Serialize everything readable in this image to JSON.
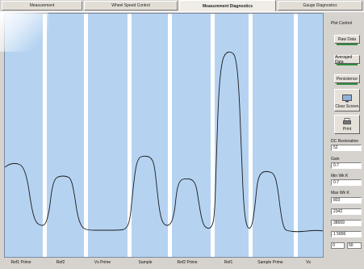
{
  "tabs": [
    {
      "label": "Measurement",
      "active": false
    },
    {
      "label": "Wheel Speed Control",
      "active": false
    },
    {
      "label": "Measurement Diagnostics",
      "active": true
    },
    {
      "label": "Gauge Diagnostics",
      "active": false
    }
  ],
  "plot": {
    "background": "#b5d3f1",
    "trace_color": "#1a1a1a",
    "stripe_color": "#ffffff",
    "x_labels": [
      "Ref1 Prime",
      "Ref2",
      "Vs Prime",
      "Sample",
      "Ref2 Prime",
      "Ref1",
      "Sample Prime",
      "Vs"
    ]
  },
  "panel": {
    "title": "Plot Control",
    "raw_data": "Raw Data",
    "averaged_data": "Averaged Data",
    "persistence": "Persistence",
    "clear_screen": "Clear Screen",
    "print": "Print",
    "dc_restoration_label": "DC Restoration",
    "dc_restoration_value": "52",
    "gain_label": "Gain",
    "gain_value": "0.7",
    "min_wk_label": "Min Wk K",
    "min_wk_value": "0.7",
    "max_wk_label": "Max Wk K",
    "field_a": "803",
    "field_b": "2342",
    "field_c": "38669",
    "field_d": "1 5896",
    "small_left": "0",
    "small_right": "50"
  }
}
